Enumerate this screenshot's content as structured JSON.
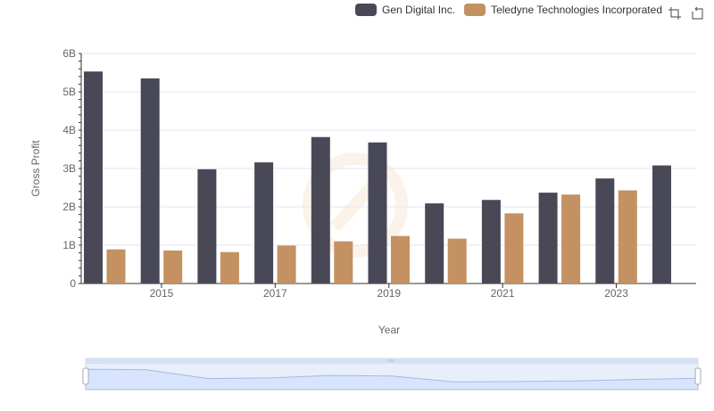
{
  "legend": {
    "series_a": "Gen Digital Inc.",
    "series_b": "Teledyne Technologies Incorporated"
  },
  "toolbar": {
    "zoom_icon": "zoom-select-icon",
    "restore_icon": "restore-icon"
  },
  "colors": {
    "series_a": "#484856",
    "series_b": "#c49162",
    "grid": "#e0e6f1",
    "axis": "#333333",
    "slider_fill": "#d6e4fd",
    "slider_border": "#a8b9dd"
  },
  "chart_data": {
    "type": "bar",
    "title": "",
    "xlabel": "Year",
    "ylabel": "Gross Profit",
    "ylim": [
      0,
      6000000000
    ],
    "yticks": [
      "0",
      "1B",
      "2B",
      "3B",
      "4B",
      "5B",
      "6B"
    ],
    "categories": [
      "2014",
      "2015",
      "2016",
      "2017",
      "2018",
      "2019",
      "2020",
      "2021",
      "2022",
      "2023",
      "2024"
    ],
    "xtick_labels": [
      "2015",
      "2017",
      "2019",
      "2021",
      "2023"
    ],
    "series": [
      {
        "name": "Gen Digital Inc.",
        "values": [
          5530000000,
          5350000000,
          2980000000,
          3160000000,
          3820000000,
          3680000000,
          2090000000,
          2180000000,
          2370000000,
          2740000000,
          3080000000
        ]
      },
      {
        "name": "Teledyne Technologies Incorporated",
        "values": [
          890000000,
          860000000,
          820000000,
          990000000,
          1100000000,
          1240000000,
          1170000000,
          1830000000,
          2320000000,
          2430000000,
          null
        ]
      }
    ]
  }
}
